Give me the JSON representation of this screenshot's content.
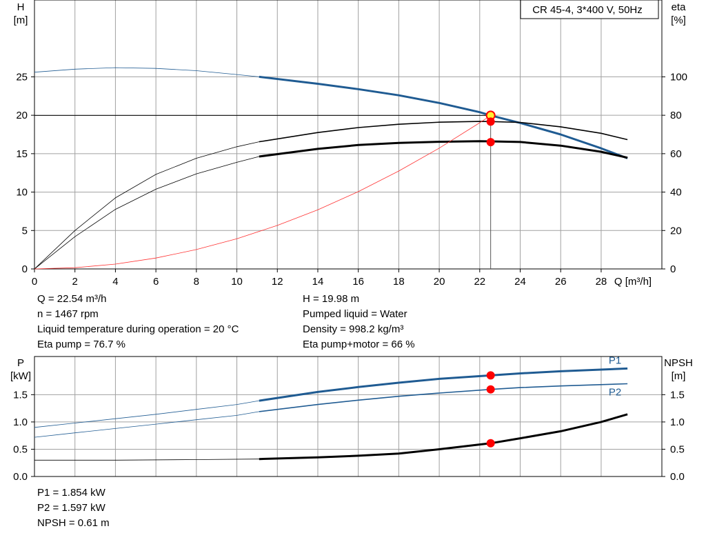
{
  "colors": {
    "head_curve": "#1f5b92",
    "eta_curve": "#000000",
    "npsh_curve": "#000000",
    "power_curve": "#1f5b92",
    "system_curve": "#ff3030",
    "operating_point": "#ff0000",
    "duty_point_fill": "#ffee33",
    "frame": "#000000",
    "grid": "#a0a0a0"
  },
  "upper_info": {
    "left": [
      "Q = 22.54 m³/h",
      "n = 1467 rpm",
      "Liquid temperature during operation = 20 °C",
      "Eta pump = 76.7 %"
    ],
    "right": [
      "H = 19.98 m",
      "Pumped liquid = Water",
      "Density = 998.2 kg/m³",
      "Eta pump+motor = 66 %"
    ]
  },
  "lower_info": [
    "P1 = 1.854 kW",
    "P2 = 1.597 kW",
    "NPSH = 0.61 m"
  ],
  "chart_data": [
    {
      "type": "line",
      "title": "CR 45-4, 3*400 V, 50Hz",
      "xlabel": "Q [m³/h]",
      "ylabel_left": "H\n[m]",
      "ylabel_right": "eta\n[%]",
      "xlim": [
        0,
        31
      ],
      "x_ticks": [
        0,
        2,
        4,
        6,
        8,
        10,
        12,
        14,
        16,
        18,
        20,
        22,
        24,
        26,
        28
      ],
      "ylim_left": [
        0,
        35
      ],
      "y_ticks_left": [
        0,
        5,
        10,
        15,
        20,
        25
      ],
      "ylim_right": [
        0,
        140
      ],
      "y_ticks_right": [
        0,
        20,
        40,
        60,
        80,
        100
      ],
      "grid": true,
      "operating_point": {
        "q": 22.54,
        "h": 19.98
      },
      "series": [
        {
          "axis": "left",
          "x": [
            0,
            2,
            4,
            6,
            8,
            10,
            11.1
          ],
          "y": [
            25.6,
            26.0,
            26.2,
            26.1,
            25.8,
            25.3,
            25.0
          ],
          "style": "thin"
        },
        {
          "axis": "left",
          "x": [
            11.1,
            14,
            16,
            18,
            20,
            22,
            22.54,
            24,
            26,
            28,
            29.3
          ],
          "y": [
            25.0,
            24.1,
            23.4,
            22.6,
            21.6,
            20.4,
            19.98,
            19.0,
            17.5,
            15.7,
            14.4
          ],
          "style": "thick"
        },
        {
          "axis": "right",
          "x": [
            0,
            2,
            4,
            6,
            8,
            10,
            11.1
          ],
          "y": [
            0,
            16.8,
            31.0,
            41.5,
            49.5,
            55.5,
            58.5
          ],
          "style": "thin"
        },
        {
          "axis": "right",
          "x": [
            11.1,
            14,
            16,
            18,
            20,
            22,
            22.54,
            24,
            26,
            28,
            29.3
          ],
          "y": [
            58.5,
            62.5,
            64.5,
            65.6,
            66.2,
            66.5,
            66.4,
            66.1,
            64.2,
            61.0,
            57.9
          ],
          "style": "thick"
        },
        {
          "axis": "right",
          "x": [
            0,
            2,
            4,
            6,
            8,
            10,
            11.1
          ],
          "y": [
            0,
            20.0,
            37.0,
            49.2,
            57.6,
            63.6,
            66.2
          ],
          "style": "thin"
        },
        {
          "axis": "right",
          "x": [
            11.1,
            14,
            16,
            18,
            20,
            22,
            22.54,
            24,
            26,
            28,
            29.3
          ],
          "y": [
            66.2,
            71.0,
            73.6,
            75.3,
            76.4,
            76.8,
            76.7,
            76.3,
            74.0,
            70.6,
            67.3
          ],
          "style": "medium"
        },
        {
          "axis": "left",
          "x": [
            0,
            2,
            4,
            6,
            8,
            10,
            12,
            14,
            16,
            18,
            20,
            22,
            22.54
          ],
          "y": [
            0,
            0.16,
            0.63,
            1.42,
            2.52,
            3.93,
            5.66,
            7.7,
            10.06,
            12.74,
            15.72,
            19.03,
            19.98
          ],
          "style": "system"
        }
      ],
      "markers": [
        {
          "axis": "left",
          "x": 22.54,
          "y": 19.98,
          "kind": "duty"
        },
        {
          "axis": "right",
          "x": 22.54,
          "y": 76.7,
          "kind": "point"
        },
        {
          "axis": "right",
          "x": 22.54,
          "y": 66.0,
          "kind": "point"
        }
      ]
    },
    {
      "type": "line",
      "ylabel_left": "P\n[kW]",
      "ylabel_right": "NPSH\n[m]",
      "xlim": [
        0,
        31
      ],
      "ylim_left": [
        0,
        2.2
      ],
      "y_ticks_left": [
        0,
        0.5,
        1.0,
        1.5
      ],
      "y_tick_labels_left": [
        "0.0",
        "0.5",
        "1.0",
        "1.5"
      ],
      "ylim_right": [
        0,
        2.2
      ],
      "y_ticks_right": [
        0,
        0.5,
        1.0,
        1.5
      ],
      "y_tick_labels_right": [
        "0.0",
        "0.5",
        "1.0",
        "1.5"
      ],
      "grid": true,
      "series": [
        {
          "name": "P1",
          "axis": "left",
          "x": [
            0,
            2,
            4,
            6,
            8,
            10,
            11.1
          ],
          "y": [
            0.9,
            0.98,
            1.06,
            1.14,
            1.23,
            1.32,
            1.39
          ],
          "style": "thin"
        },
        {
          "name": "P1",
          "axis": "left",
          "x": [
            11.1,
            14,
            16,
            18,
            20,
            22.54,
            24,
            26,
            29.3
          ],
          "y": [
            1.39,
            1.55,
            1.64,
            1.72,
            1.79,
            1.854,
            1.89,
            1.93,
            1.98
          ],
          "style": "thick"
        },
        {
          "name": "P2",
          "axis": "left",
          "x": [
            0,
            2,
            4,
            6,
            8,
            10,
            11.1
          ],
          "y": [
            0.72,
            0.8,
            0.88,
            0.96,
            1.04,
            1.12,
            1.19
          ],
          "style": "thin"
        },
        {
          "name": "P2",
          "axis": "left",
          "x": [
            11.1,
            14,
            16,
            18,
            20,
            22.54,
            24,
            26,
            29.3
          ],
          "y": [
            1.19,
            1.32,
            1.4,
            1.47,
            1.53,
            1.597,
            1.63,
            1.66,
            1.7
          ],
          "style": "medium"
        },
        {
          "axis": "right",
          "x": [
            0,
            4,
            8,
            11.1
          ],
          "y": [
            0.3,
            0.3,
            0.31,
            0.32
          ],
          "style": "thin"
        },
        {
          "axis": "right",
          "x": [
            11.1,
            14,
            16,
            18,
            20,
            22.54,
            24,
            26,
            28,
            29.3
          ],
          "y": [
            0.32,
            0.35,
            0.38,
            0.42,
            0.5,
            0.61,
            0.7,
            0.83,
            1.0,
            1.14
          ],
          "style": "thick"
        }
      ],
      "markers": [
        {
          "axis": "left",
          "x": 22.54,
          "y": 1.854,
          "kind": "point"
        },
        {
          "axis": "left",
          "x": 22.54,
          "y": 1.597,
          "kind": "point"
        },
        {
          "axis": "right",
          "x": 22.54,
          "y": 0.61,
          "kind": "point"
        }
      ]
    }
  ]
}
